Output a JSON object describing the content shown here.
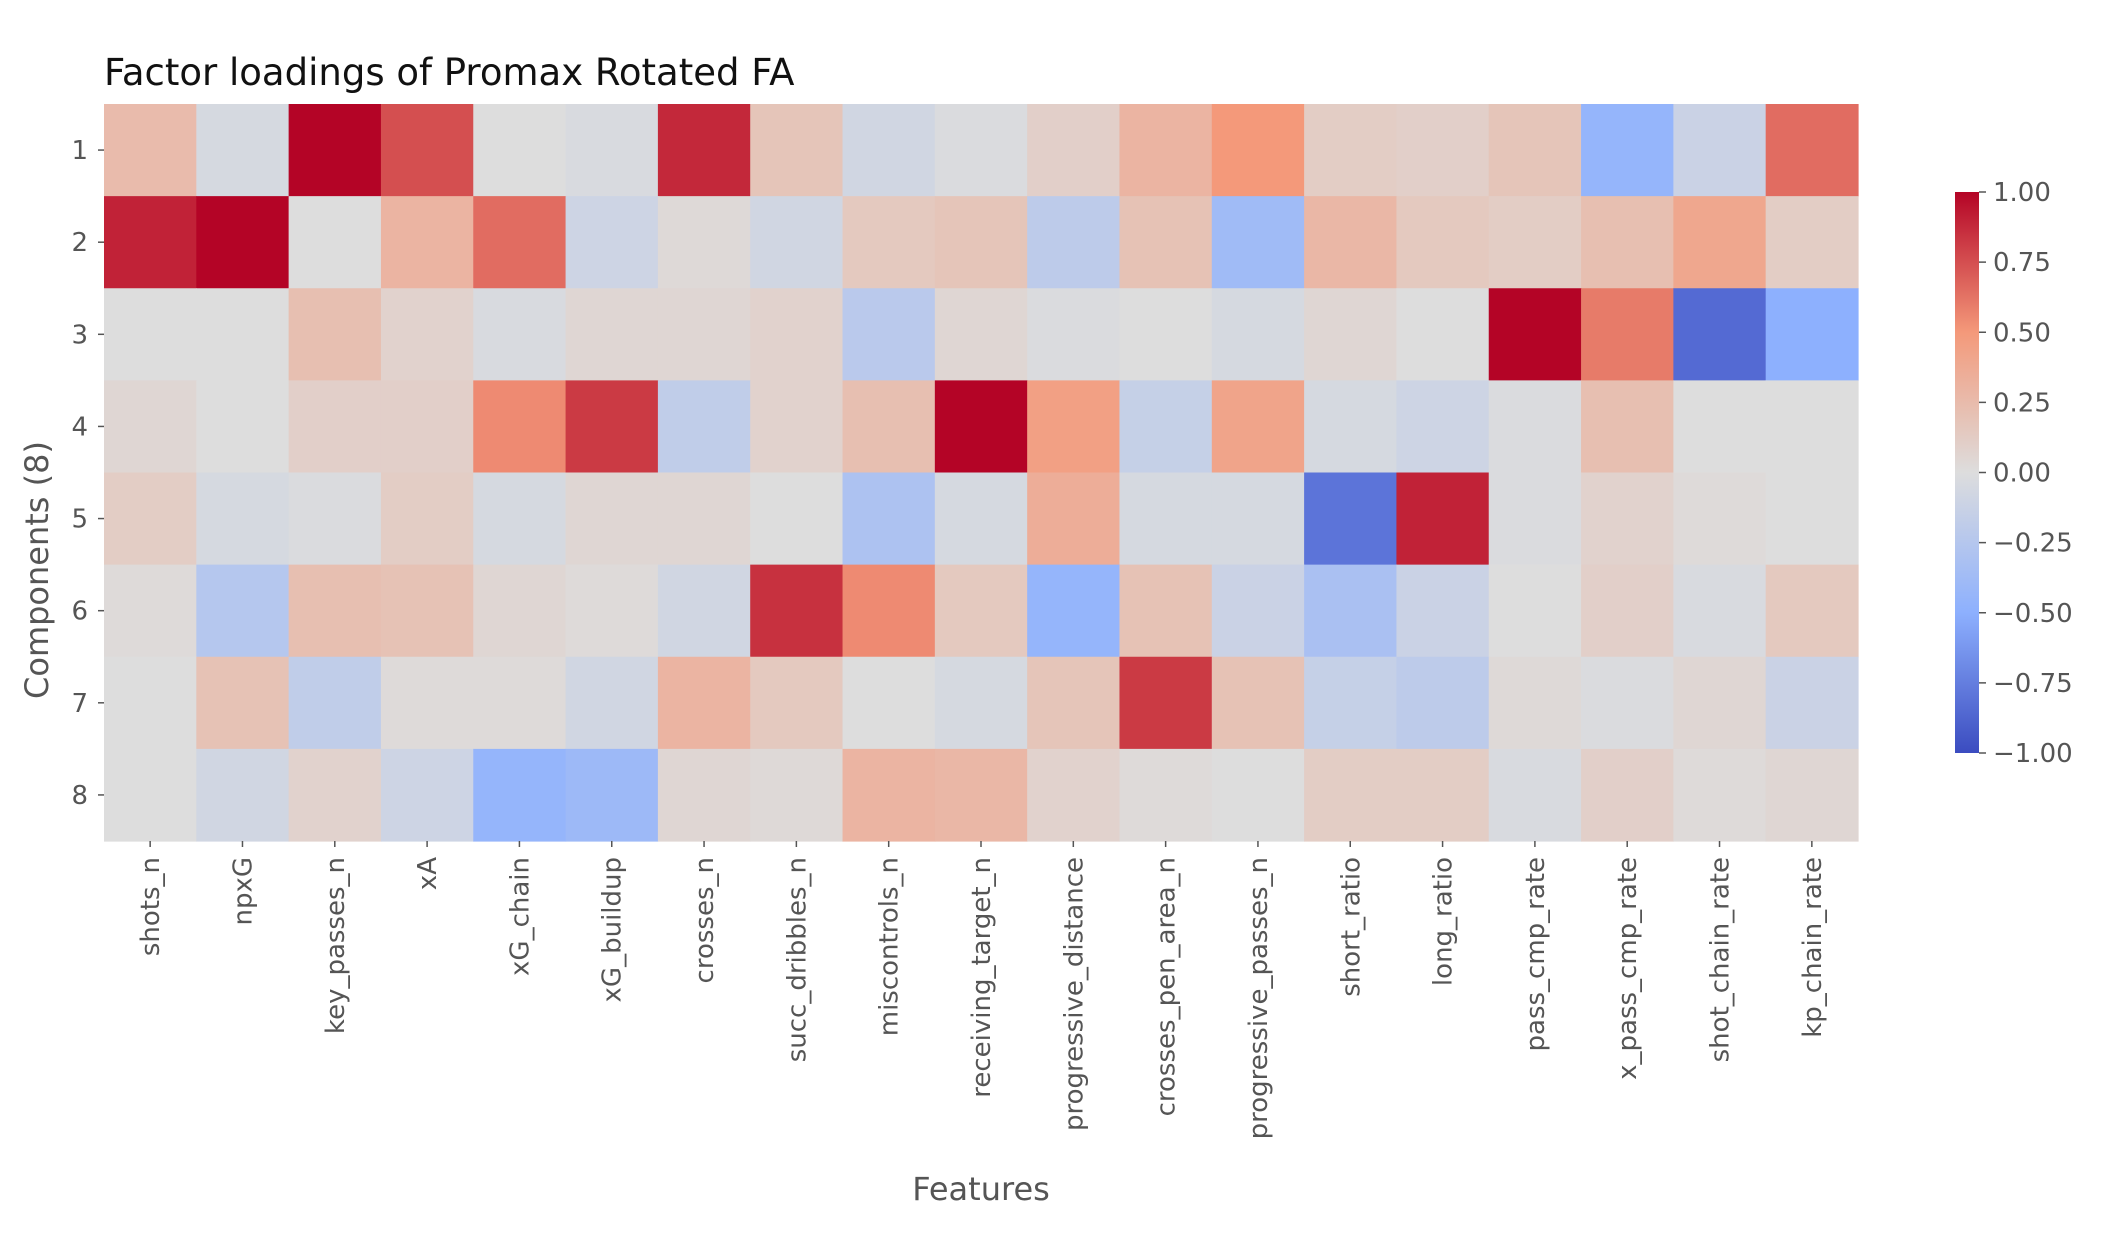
{
  "chart_data": {
    "type": "heatmap",
    "title": "Factor loadings of Promax Rotated FA",
    "xlabel": "Features",
    "ylabel": "Components (8)",
    "x": [
      "shots_n",
      "npxG",
      "key_passes_n",
      "xA",
      "xG_chain",
      "xG_buildup",
      "crosses_n",
      "succ_dribbles_n",
      "miscontrols_n",
      "receiving_target_n",
      "progressive_distance",
      "crosses_pen_area_n",
      "progressive_passes_n",
      "short_ratio",
      "long_ratio",
      "pass_cmp_rate",
      "x_pass_cmp_rate",
      "shot_chain_rate",
      "kp_chain_rate"
    ],
    "y": [
      "1",
      "2",
      "3",
      "4",
      "5",
      "6",
      "7",
      "8"
    ],
    "values": [
      [
        0.25,
        -0.05,
        1.0,
        0.75,
        0.0,
        -0.03,
        0.88,
        0.18,
        -0.08,
        -0.02,
        0.1,
        0.3,
        0.5,
        0.12,
        0.1,
        0.18,
        -0.45,
        -0.12,
        0.65
      ],
      [
        0.9,
        1.0,
        0.0,
        0.3,
        0.65,
        -0.1,
        0.03,
        -0.08,
        0.15,
        0.18,
        -0.2,
        0.2,
        -0.38,
        0.28,
        0.15,
        0.12,
        0.22,
        0.4,
        0.12
      ],
      [
        0.0,
        0.0,
        0.22,
        0.08,
        -0.03,
        0.05,
        0.05,
        0.08,
        -0.22,
        0.05,
        -0.02,
        0.0,
        -0.05,
        0.05,
        0.0,
        1.0,
        0.6,
        -0.85,
        -0.5
      ],
      [
        0.05,
        0.0,
        0.1,
        0.1,
        0.55,
        0.82,
        -0.18,
        0.08,
        0.22,
        1.0,
        0.45,
        -0.15,
        0.42,
        -0.05,
        -0.1,
        -0.02,
        0.22,
        0.0,
        0.0
      ],
      [
        0.12,
        -0.05,
        -0.02,
        0.12,
        -0.05,
        0.05,
        0.05,
        0.0,
        -0.3,
        -0.05,
        0.35,
        -0.05,
        -0.05,
        -0.8,
        0.9,
        -0.02,
        0.08,
        0.02,
        0.0
      ],
      [
        0.02,
        -0.25,
        0.22,
        0.2,
        0.05,
        0.02,
        -0.08,
        0.85,
        0.55,
        0.15,
        -0.45,
        0.2,
        -0.12,
        -0.32,
        -0.12,
        0.0,
        0.1,
        -0.03,
        0.15
      ],
      [
        0.0,
        0.2,
        -0.18,
        0.02,
        0.02,
        -0.08,
        0.3,
        0.15,
        0.0,
        -0.05,
        0.18,
        0.82,
        0.2,
        -0.15,
        -0.2,
        0.03,
        -0.02,
        0.05,
        -0.12
      ],
      [
        0.0,
        -0.08,
        0.08,
        -0.1,
        -0.45,
        -0.4,
        0.05,
        0.03,
        0.3,
        0.28,
        0.08,
        0.02,
        0.0,
        0.12,
        0.12,
        -0.03,
        0.1,
        0.02,
        0.05
      ]
    ],
    "colorbar": {
      "ticks": [
        "1.00",
        "0.75",
        "0.50",
        "0.25",
        "0.00",
        "−0.25",
        "−0.50",
        "−0.75",
        "−1.00"
      ],
      "range": [
        -1.0,
        1.0
      ],
      "colormap": "coolwarm"
    }
  }
}
